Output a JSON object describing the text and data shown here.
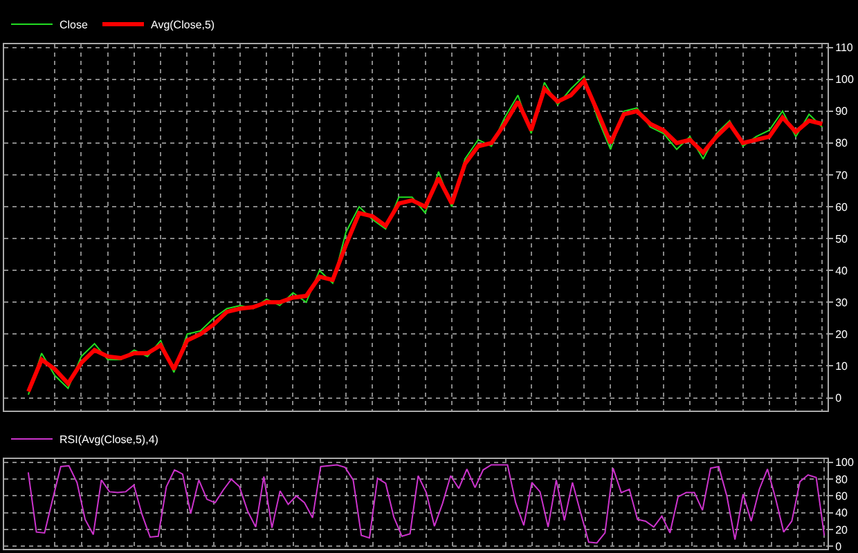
{
  "chart_data": [
    {
      "type": "line",
      "categories": [
        null,
        null,
        null,
        null,
        null,
        null,
        null,
        null,
        null,
        null,
        null,
        null,
        null,
        null,
        null,
        null,
        null,
        null,
        null,
        null,
        null,
        null,
        null,
        null,
        null,
        null,
        null,
        null,
        null,
        null,
        null,
        null,
        null,
        null,
        null,
        null,
        null,
        null,
        null,
        null,
        null,
        null,
        null,
        null,
        null,
        null,
        null,
        null,
        null,
        null,
        null,
        null,
        null,
        null,
        null,
        null,
        null,
        null,
        null,
        null,
        null
      ],
      "series": [
        {
          "name": "Close",
          "color": "#22dd22",
          "values": [
            1,
            14,
            7,
            3,
            13,
            17,
            12,
            12,
            15,
            13,
            18,
            8,
            20,
            21,
            25,
            28,
            29,
            28,
            31,
            29,
            33,
            30,
            40,
            36,
            52,
            60,
            56,
            53,
            63,
            63,
            58,
            71,
            60,
            75,
            81,
            79,
            88,
            95,
            83,
            99,
            92,
            97,
            101,
            88,
            78,
            90,
            91,
            85,
            83,
            78,
            82,
            75,
            83,
            87,
            79,
            82,
            84,
            90,
            82,
            89,
            85
          ]
        },
        {
          "name": "Avg(Close,5)",
          "color": "#ff0000",
          "values": [
            2,
            12,
            9,
            4.5,
            11,
            15,
            13,
            12.5,
            14,
            14,
            16.5,
            9,
            18,
            20,
            23,
            27,
            28,
            28.5,
            30,
            30,
            31.5,
            32,
            38,
            37,
            48,
            58,
            57,
            54,
            61,
            62,
            60,
            69,
            61,
            73.5,
            79,
            80,
            86,
            93,
            84,
            97,
            93,
            95,
            99.5,
            90,
            80,
            89,
            90,
            86,
            84,
            80,
            81,
            77,
            82,
            86,
            80,
            81,
            82,
            88,
            83.5,
            87,
            86
          ]
        }
      ],
      "ylim": [
        -4,
        111
      ],
      "yticks": [
        0,
        10,
        20,
        30,
        40,
        50,
        60,
        70,
        80,
        90,
        100,
        110
      ],
      "grid": true,
      "legend": "top left",
      "tick_labels": "y",
      "marker": "none",
      "line_style": "solid"
    },
    {
      "type": "line",
      "categories": [
        null,
        null,
        null,
        null,
        null,
        null,
        null,
        null,
        null,
        null,
        null,
        null,
        null,
        null,
        null,
        null,
        null,
        null,
        null,
        null,
        null,
        null,
        null,
        null,
        null,
        null,
        null,
        null,
        null,
        null,
        null,
        null,
        null,
        null,
        null,
        null,
        null,
        null,
        null,
        null,
        null,
        null,
        null,
        null,
        null,
        null,
        null,
        null,
        null,
        null,
        null,
        null,
        null,
        null,
        null,
        null,
        null,
        null,
        null,
        null,
        null,
        null,
        null,
        null,
        null,
        null,
        null,
        null,
        null,
        null,
        null,
        null,
        null,
        null,
        null,
        null,
        null,
        null,
        null,
        null,
        null,
        null,
        null,
        null,
        null,
        null,
        null,
        null,
        null,
        null,
        null,
        null,
        null,
        null,
        null,
        null,
        null,
        null,
        null
      ],
      "series": [
        {
          "name": "RSI(Avg(Close,5),4)",
          "color": "#cc33cc",
          "values": [
            88,
            17,
            16,
            56,
            95,
            96,
            76,
            32,
            14,
            79,
            65,
            64,
            65,
            73,
            38,
            11,
            12,
            71,
            91,
            86,
            39,
            79,
            56,
            52,
            67,
            80,
            71,
            42,
            23,
            83,
            22,
            66,
            50,
            60,
            52,
            34,
            95,
            96,
            97,
            94,
            79,
            13,
            10,
            81,
            75,
            35,
            12,
            15,
            84,
            64,
            24,
            51,
            84,
            69,
            92,
            70,
            91,
            97,
            97,
            97,
            52,
            25,
            76,
            65,
            23,
            79,
            31,
            76,
            40,
            5,
            4,
            16,
            93,
            64,
            68,
            32,
            30,
            23,
            36,
            16,
            59,
            64,
            64,
            43,
            93,
            95,
            60,
            8,
            62,
            30,
            68,
            92,
            57,
            17,
            30,
            77,
            85,
            82,
            13
          ]
        }
      ],
      "ylim": [
        -3,
        104
      ],
      "yticks": [
        0,
        20,
        40,
        60,
        80,
        100
      ],
      "grid": true,
      "legend": "top left",
      "tick_labels": "y",
      "marker": "none",
      "line_style": "solid"
    }
  ]
}
